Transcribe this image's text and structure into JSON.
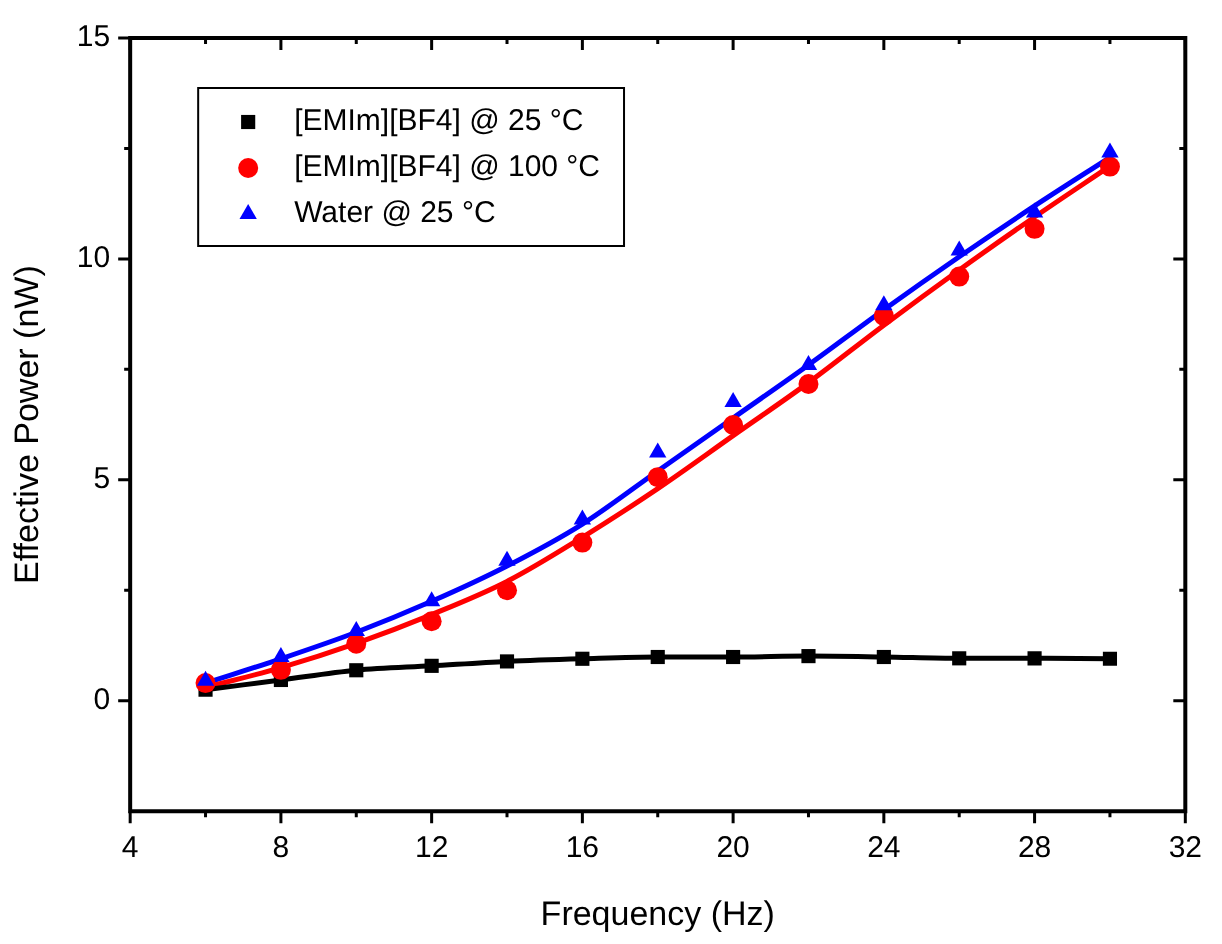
{
  "chart_data": {
    "type": "scatter",
    "xlabel": "Frequency (Hz)",
    "ylabel": "Effective Power (nW)",
    "xlim": [
      4,
      32
    ],
    "xticks": [
      4,
      {
        "value": 6,
        "label": null
      },
      8,
      {
        "value": 10,
        "label": null
      },
      12,
      {
        "value": 14,
        "label": null
      },
      16,
      {
        "value": 18,
        "label": null
      },
      20,
      {
        "value": 22,
        "label": null
      },
      24,
      {
        "value": 26,
        "label": null
      },
      28,
      {
        "value": 30,
        "label": null
      },
      32
    ],
    "ylim": [
      -2.5,
      15
    ],
    "yticks": [
      0,
      {
        "value": 2.5,
        "label": null
      },
      5,
      {
        "value": 7.5,
        "label": null
      },
      10,
      {
        "value": 12.5,
        "label": null
      },
      15
    ],
    "grid": false,
    "legend": "top left",
    "series": [
      {
        "name": "[EMIm][BF4] @ 25 °C",
        "type": "line",
        "marker": "square",
        "color": "#000000",
        "x": [
          6,
          8,
          10,
          12,
          14,
          16,
          18,
          20,
          22,
          24,
          26,
          28,
          30
        ],
        "values": [
          0.25,
          0.47,
          0.69,
          0.79,
          0.89,
          0.95,
          0.99,
          0.99,
          1.01,
          0.99,
          0.96,
          0.96,
          0.95
        ]
      },
      {
        "name": "[EMIm][BF4] @ 100 °C",
        "marker": "circle",
        "color": "#ff0000",
        "x": [
          6,
          8,
          10,
          12,
          14,
          16,
          18,
          20,
          22,
          24,
          26,
          28,
          30
        ],
        "values": [
          0.4,
          0.7,
          1.29,
          1.8,
          2.5,
          3.58,
          5.06,
          6.24,
          7.17,
          8.71,
          9.6,
          10.68,
          12.09
        ]
      },
      {
        "name": "Water @ 25 °C",
        "marker": "triangle",
        "color": "#0000ff",
        "x": [
          6,
          8,
          10,
          12,
          14,
          16,
          18,
          20,
          22,
          24,
          26,
          28,
          30
        ],
        "values": [
          0.45,
          0.99,
          1.58,
          2.25,
          3.17,
          4.1,
          5.62,
          6.76,
          7.6,
          8.95,
          10.19,
          11.05,
          12.41
        ]
      },
      {
        "type": "line",
        "marker": "none",
        "color": "#ff0000",
        "x": [
          6,
          8,
          10,
          12,
          14,
          16,
          18,
          20,
          22,
          24,
          26,
          28,
          30
        ],
        "values": [
          0.3,
          0.75,
          1.3,
          1.95,
          2.7,
          3.7,
          4.8,
          6.0,
          7.2,
          8.5,
          9.75,
          10.95,
          12.1
        ]
      },
      {
        "type": "line",
        "marker": "none",
        "color": "#0000ff",
        "x": [
          6,
          8,
          10,
          12,
          14,
          16,
          18,
          20,
          22,
          24,
          26,
          28,
          30
        ],
        "values": [
          0.4,
          0.95,
          1.55,
          2.25,
          3.05,
          4.0,
          5.2,
          6.4,
          7.6,
          8.85,
          10.05,
          11.2,
          12.3
        ]
      }
    ]
  }
}
